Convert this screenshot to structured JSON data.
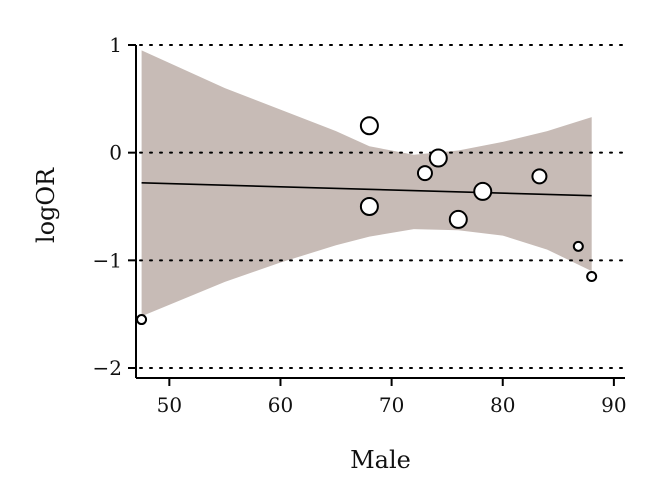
{
  "chart_data": {
    "type": "scatter",
    "title": "",
    "xlabel": "Male",
    "ylabel": "logOR",
    "xlim": [
      47,
      91
    ],
    "ylim": [
      -2.05,
      1.05
    ],
    "x_ticks": [
      50,
      60,
      70,
      80,
      90
    ],
    "x_tick_labels": [
      "50",
      "60",
      "70",
      "80",
      "90"
    ],
    "y_ticks": [
      1,
      0,
      -1,
      -2
    ],
    "y_tick_labels": [
      "1",
      "0",
      "−1",
      "−2"
    ],
    "reference_lines_y": [
      1,
      0,
      -1,
      -2
    ],
    "points": [
      {
        "x": 47.5,
        "y": -1.55,
        "weight": "small"
      },
      {
        "x": 68.0,
        "y": 0.25,
        "weight": "large"
      },
      {
        "x": 68.0,
        "y": -0.5,
        "weight": "large"
      },
      {
        "x": 73.0,
        "y": -0.19,
        "weight": "medium"
      },
      {
        "x": 74.2,
        "y": -0.05,
        "weight": "large"
      },
      {
        "x": 76.0,
        "y": -0.62,
        "weight": "large"
      },
      {
        "x": 78.2,
        "y": -0.36,
        "weight": "large"
      },
      {
        "x": 83.3,
        "y": -0.22,
        "weight": "medium"
      },
      {
        "x": 86.8,
        "y": -0.87,
        "weight": "small"
      },
      {
        "x": 88.0,
        "y": -1.15,
        "weight": "small"
      }
    ],
    "regression_line": {
      "x": [
        47.5,
        88.0
      ],
      "y": [
        -0.28,
        -0.4
      ]
    },
    "confidence_band": {
      "x": [
        47.5,
        55,
        60,
        65,
        68,
        72,
        76,
        80,
        84,
        88
      ],
      "upper": [
        0.95,
        0.6,
        0.4,
        0.2,
        0.06,
        -0.02,
        0.02,
        0.1,
        0.2,
        0.33
      ],
      "lower": [
        -1.52,
        -1.2,
        -1.02,
        -0.86,
        -0.78,
        -0.71,
        -0.72,
        -0.77,
        -0.9,
        -1.1
      ]
    },
    "colors": {
      "band": "#c7bbb6",
      "line": "#000000",
      "point_fill": "#ffffff",
      "point_stroke": "#000000"
    },
    "grid": false,
    "legend": "none"
  }
}
